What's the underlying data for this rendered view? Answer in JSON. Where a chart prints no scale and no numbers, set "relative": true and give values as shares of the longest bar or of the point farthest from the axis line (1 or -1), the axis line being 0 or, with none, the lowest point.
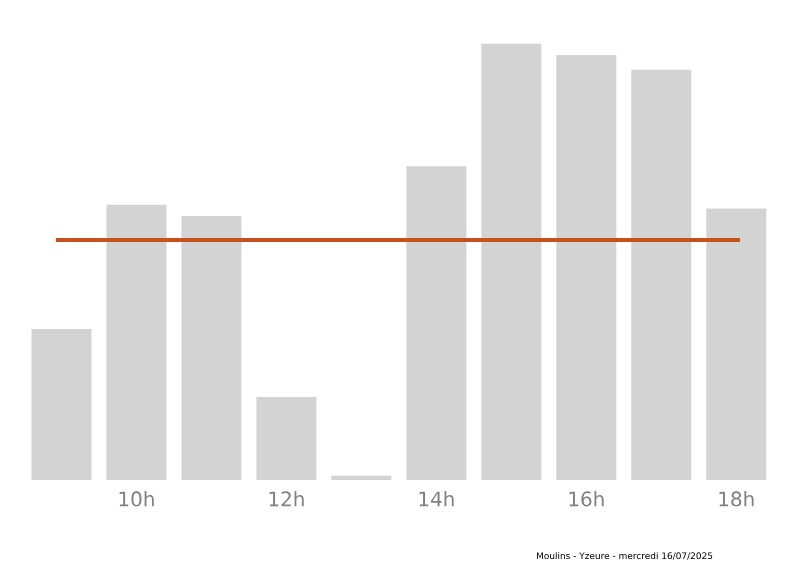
{
  "chart_data": {
    "type": "bar",
    "relative": true,
    "categories": [
      null,
      "10h",
      null,
      "12h",
      null,
      "14h",
      null,
      "16h",
      null,
      "18h"
    ],
    "values": [
      0.346,
      0.631,
      0.605,
      0.19,
      0.01,
      0.719,
      1,
      0.974,
      0.94,
      0.622
    ],
    "color": "#d3d3d3",
    "ref_lines": [
      {
        "axis": "y",
        "value": 0.55,
        "color": "#c8501e"
      }
    ],
    "annotations": [
      "Moulins - Yzeure - mercredi 16/07/2025"
    ]
  }
}
